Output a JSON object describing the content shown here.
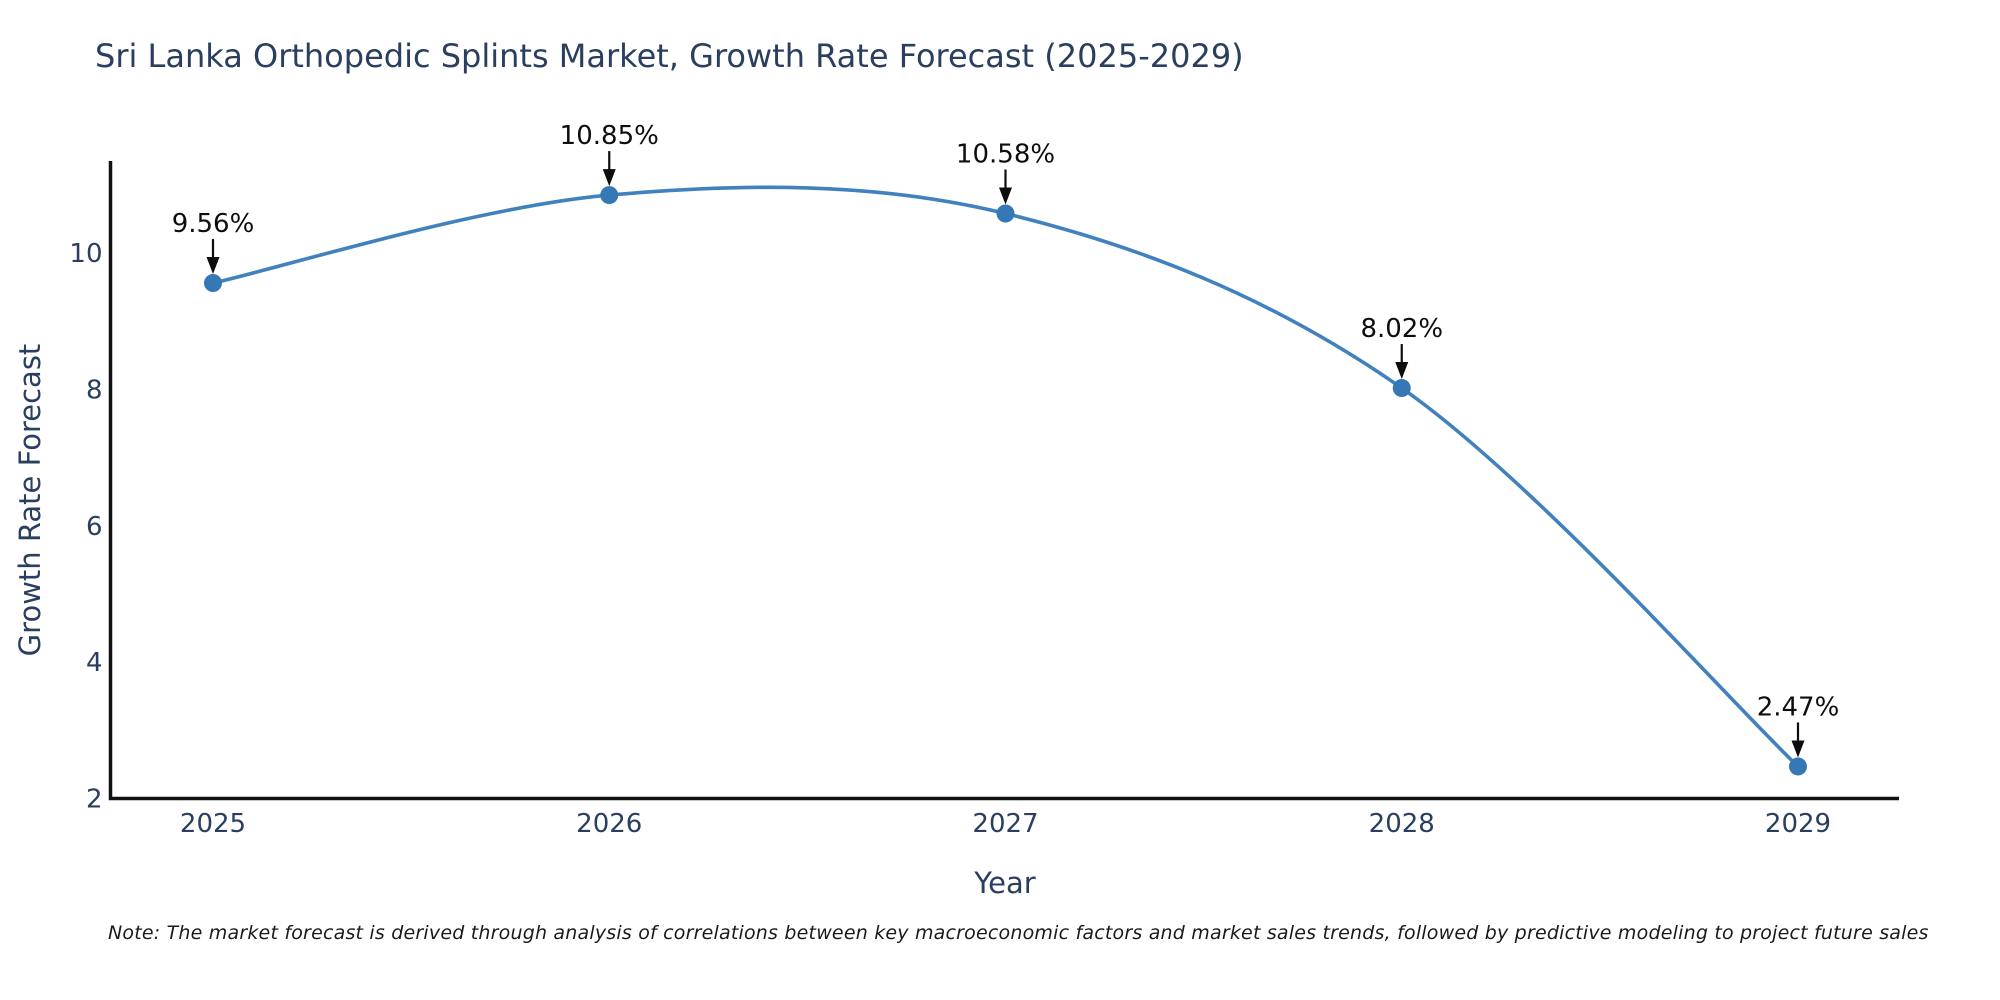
{
  "chart_data": {
    "type": "line",
    "title": "Sri Lanka Orthopedic Splints Market, Growth Rate Forecast (2025-2029)",
    "xlabel": "Year",
    "ylabel": "Growth Rate Forecast",
    "x": [
      2025,
      2026,
      2027,
      2028,
      2029
    ],
    "y": [
      9.56,
      10.85,
      10.58,
      8.02,
      2.47
    ],
    "point_labels": [
      "9.56%",
      "10.85%",
      "10.58%",
      "8.02%",
      "2.47%"
    ],
    "x_tick_labels": [
      "2025",
      "2026",
      "2027",
      "2028",
      "2029"
    ],
    "y_tick_values": [
      2,
      4,
      6,
      8,
      10
    ],
    "ylim": [
      2,
      11.35
    ],
    "line_shape": "spline",
    "grid": false,
    "legend_position": "none",
    "colors": {
      "line": "#4181bd",
      "marker": "#3678b5",
      "axis": "#111111",
      "tick_text": "#2a3f5f",
      "annotation": "#0d0d0d"
    }
  },
  "footnote": {
    "text": "Note: The market forecast is derived through analysis of correlations between key macroeconomic factors and market sales trends, followed by predictive modeling to project future sales"
  }
}
